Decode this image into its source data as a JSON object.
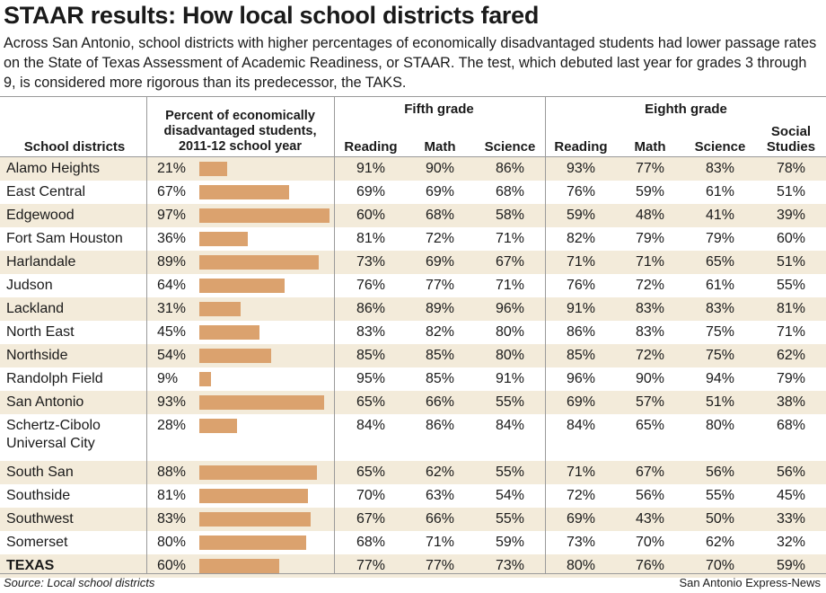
{
  "title": "STAAR results: How local school districts fared",
  "subtitle": "Across San Antonio, school districts with higher percentages of economically disadvantaged students had lower passage rates on the State of Texas Assessment of Academic Readiness, or STAAR. The test, which debuted last year for grades 3 through 9, is considered more rigorous than its predecessor, the TAKS.",
  "headers": {
    "districts": "School districts",
    "percent_line1": "Percent of economically",
    "percent_line2": "disadvantaged students,",
    "percent_line3": "2011-12 school year",
    "fifth_grade": "Fifth grade",
    "eighth_grade": "Eighth grade",
    "reading": "Reading",
    "math": "Math",
    "science": "Science",
    "social_line1": "Social",
    "social_line2": "Studies"
  },
  "footer": {
    "source": "Source: Local school districts",
    "credit": "San Antonio Express-News"
  },
  "colors": {
    "bar": "#dba26e",
    "shade": "#f3ebda"
  },
  "chart_data": {
    "type": "table",
    "columns": [
      "School districts",
      "Percent of economically disadvantaged students, 2011-12 school year",
      "Fifth grade Reading",
      "Fifth grade Math",
      "Fifth grade Science",
      "Eighth grade Reading",
      "Eighth grade Math",
      "Eighth grade Science",
      "Eighth grade Social Studies"
    ],
    "rows": [
      {
        "name": [
          "Alamo Heights"
        ],
        "econ": 21,
        "scores": [
          91,
          90,
          86,
          93,
          77,
          83,
          78
        ]
      },
      {
        "name": [
          "East Central"
        ],
        "econ": 67,
        "scores": [
          69,
          69,
          68,
          76,
          59,
          61,
          51
        ]
      },
      {
        "name": [
          "Edgewood"
        ],
        "econ": 97,
        "scores": [
          60,
          68,
          58,
          59,
          48,
          41,
          39
        ]
      },
      {
        "name": [
          "Fort Sam Houston"
        ],
        "econ": 36,
        "scores": [
          81,
          72,
          71,
          82,
          79,
          79,
          60
        ]
      },
      {
        "name": [
          "Harlandale"
        ],
        "econ": 89,
        "scores": [
          73,
          69,
          67,
          71,
          71,
          65,
          51
        ]
      },
      {
        "name": [
          "Judson"
        ],
        "econ": 64,
        "scores": [
          76,
          77,
          71,
          76,
          72,
          61,
          55
        ]
      },
      {
        "name": [
          "Lackland"
        ],
        "econ": 31,
        "scores": [
          86,
          89,
          96,
          91,
          83,
          83,
          81
        ]
      },
      {
        "name": [
          "North East"
        ],
        "econ": 45,
        "scores": [
          83,
          82,
          80,
          86,
          83,
          75,
          71
        ]
      },
      {
        "name": [
          "Northside"
        ],
        "econ": 54,
        "scores": [
          85,
          85,
          80,
          85,
          72,
          75,
          62
        ]
      },
      {
        "name": [
          "Randolph Field"
        ],
        "econ": 9,
        "scores": [
          95,
          85,
          91,
          96,
          90,
          94,
          79
        ]
      },
      {
        "name": [
          "San Antonio"
        ],
        "econ": 93,
        "scores": [
          65,
          66,
          55,
          69,
          57,
          51,
          38
        ]
      },
      {
        "name": [
          "Schertz-Cibolo",
          "Universal City"
        ],
        "econ": 28,
        "scores": [
          84,
          86,
          84,
          84,
          65,
          80,
          68
        ]
      },
      {
        "name": [
          "South San"
        ],
        "econ": 88,
        "scores": [
          65,
          62,
          55,
          71,
          67,
          56,
          56
        ]
      },
      {
        "name": [
          "Southside"
        ],
        "econ": 81,
        "scores": [
          70,
          63,
          54,
          72,
          56,
          55,
          45
        ]
      },
      {
        "name": [
          "Southwest"
        ],
        "econ": 83,
        "scores": [
          67,
          66,
          55,
          69,
          43,
          50,
          33
        ]
      },
      {
        "name": [
          "Somerset"
        ],
        "econ": 80,
        "scores": [
          68,
          71,
          59,
          73,
          70,
          62,
          32
        ]
      },
      {
        "name": [
          "TEXAS"
        ],
        "econ": 60,
        "scores": [
          77,
          77,
          73,
          80,
          76,
          70,
          59
        ],
        "bold": true
      }
    ],
    "xlim": [
      0,
      100
    ],
    "value_suffix": "%"
  }
}
